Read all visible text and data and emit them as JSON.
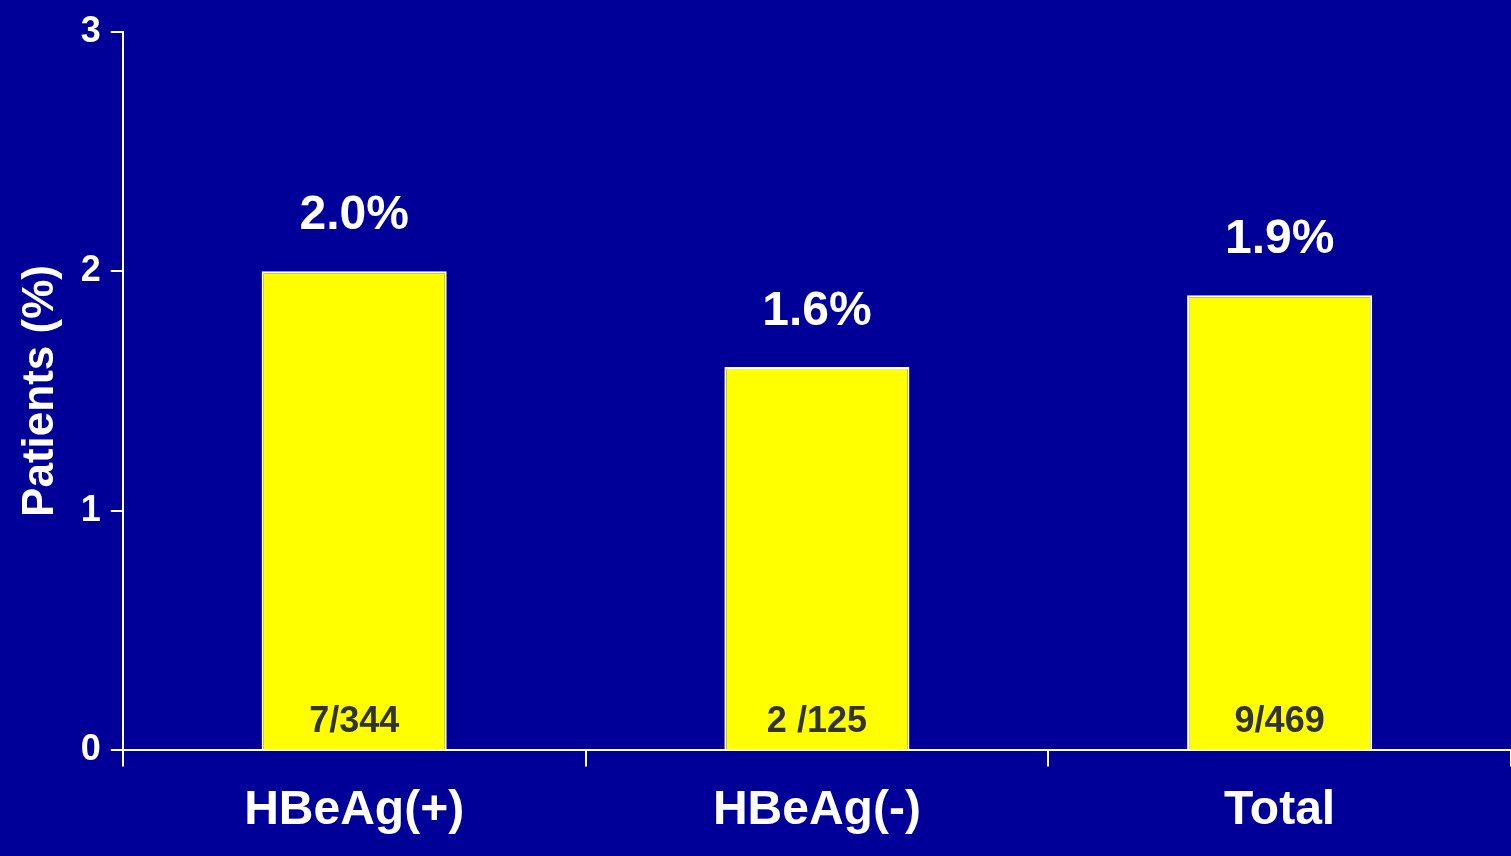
{
  "chart_data": {
    "type": "bar",
    "ylabel": "Patients (%)",
    "categories": [
      "HBeAg(+)",
      "HBeAg(-)",
      "Total"
    ],
    "values": [
      2.0,
      1.6,
      1.9
    ],
    "color": "#ffff00",
    "value_labels": [
      "2.0%",
      "1.6%",
      "1.9%"
    ],
    "annotations": [
      "7/344",
      "2 /125",
      "9/469"
    ],
    "ylim": [
      0,
      3
    ],
    "yticks": [
      0,
      1,
      2,
      3
    ],
    "grid": false,
    "legend": false
  }
}
